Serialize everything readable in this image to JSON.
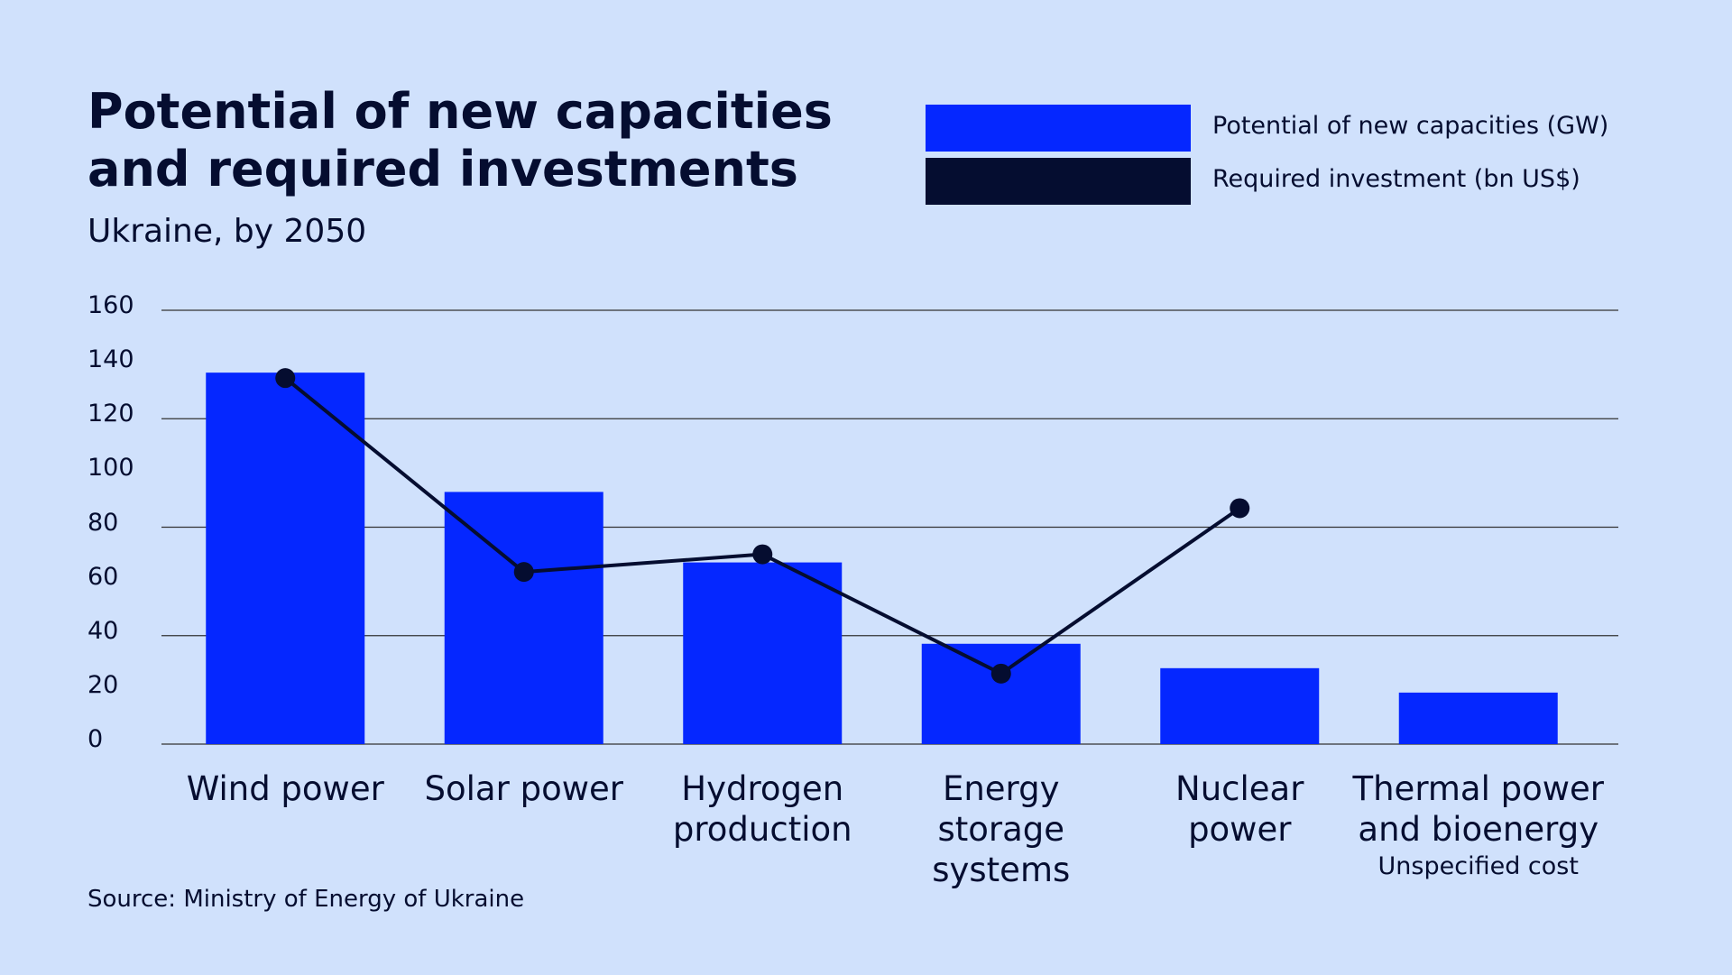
{
  "chart_data": {
    "type": "bar",
    "title": "Potential of new capacities\nand required investments",
    "subtitle": "Ukraine, by 2050",
    "source": "Source: Ministry of Energy of Ukraine",
    "categories": [
      "Wind power",
      "Solar power",
      "Hydrogen\nproduction",
      "Energy\nstorage\nsystems",
      "Nuclear\npower",
      "Thermal power\nand bioenergy"
    ],
    "annotation": "Unspecified cost",
    "series": [
      {
        "name": "Potential of new capacities (GW)",
        "color": "#0527ff",
        "type": "bar",
        "values": [
          137,
          93,
          67,
          37,
          28,
          19
        ]
      },
      {
        "name": "Required investment (bn US$)",
        "color": "#050d30",
        "type": "line",
        "values": [
          135,
          63.5,
          70,
          26,
          87,
          null
        ]
      }
    ],
    "ylim": [
      0,
      160
    ],
    "yticks": [
      0,
      20,
      40,
      60,
      80,
      100,
      120,
      140,
      160
    ],
    "grid": true
  }
}
